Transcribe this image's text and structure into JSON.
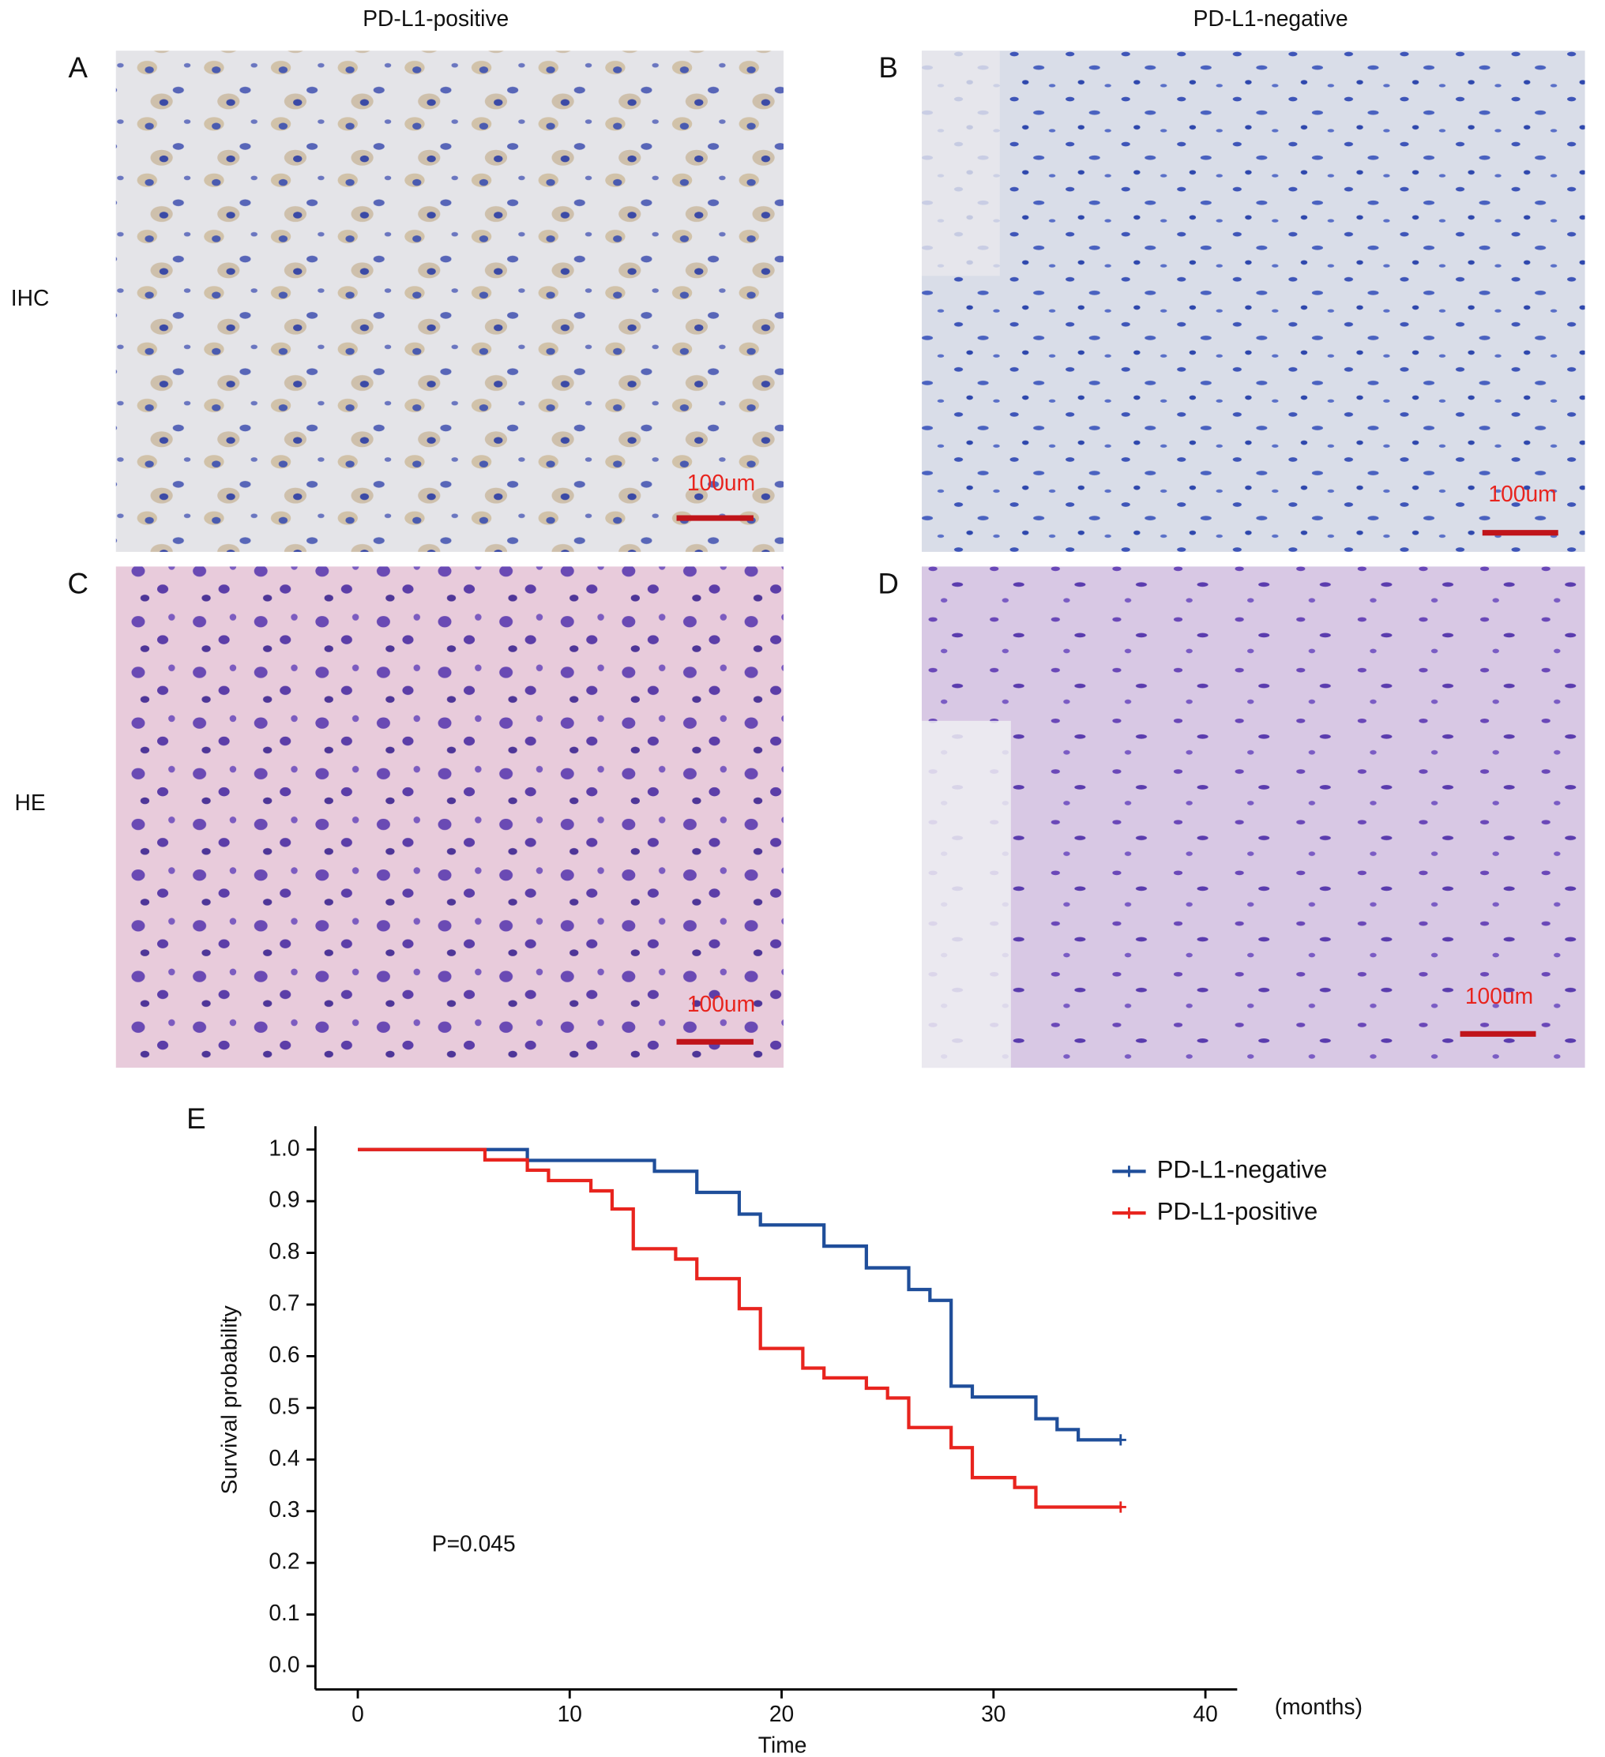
{
  "columns": [
    "PD-L1-positive",
    "PD-L1-negative"
  ],
  "rows": [
    "IHC",
    "HE"
  ],
  "panels": [
    {
      "letter": "A",
      "scale_label": "100um"
    },
    {
      "letter": "B",
      "scale_label": "100um"
    },
    {
      "letter": "C",
      "scale_label": "100um"
    },
    {
      "letter": "D",
      "scale_label": "100um"
    }
  ],
  "chart_data": {
    "type": "step",
    "panel_letter": "E",
    "x_label": "Time",
    "y_label": "Survival probability",
    "x_unit_annotation": "(months)",
    "annotation": "P=0.045",
    "xlim": [
      -2,
      41.5
    ],
    "ylim": [
      -0.045,
      1.045
    ],
    "xticks": [
      0,
      10,
      20,
      30,
      40
    ],
    "yticks": [
      {
        "value": 0,
        "label": "0.0"
      },
      0.1,
      0.2,
      0.3,
      0.4,
      0.5,
      0.6,
      0.7,
      0.8,
      0.9,
      {
        "value": 1,
        "label": "1.0"
      }
    ],
    "legend": "top-right",
    "series": [
      {
        "name": "PD-L1-negative",
        "color": "#1f4e9a",
        "x": [
          0,
          8,
          14,
          16,
          18,
          19,
          22,
          24,
          26,
          27,
          28,
          29,
          32,
          33,
          34,
          36
        ],
        "values": [
          1.0,
          0.979,
          0.958,
          0.917,
          0.875,
          0.854,
          0.813,
          0.771,
          0.729,
          0.708,
          0.542,
          0.521,
          0.479,
          0.458,
          0.438,
          0.438
        ]
      },
      {
        "name": "PD-L1-positive",
        "color": "#e8241e",
        "x": [
          0,
          6,
          8,
          9,
          11,
          12,
          13,
          15,
          16,
          18,
          19,
          21,
          22,
          24,
          25,
          26,
          28,
          29,
          31,
          32,
          36
        ],
        "values": [
          1.0,
          0.98,
          0.96,
          0.94,
          0.92,
          0.885,
          0.808,
          0.788,
          0.75,
          0.692,
          0.615,
          0.577,
          0.558,
          0.538,
          0.519,
          0.462,
          0.423,
          0.365,
          0.346,
          0.308,
          0.308
        ]
      }
    ]
  }
}
